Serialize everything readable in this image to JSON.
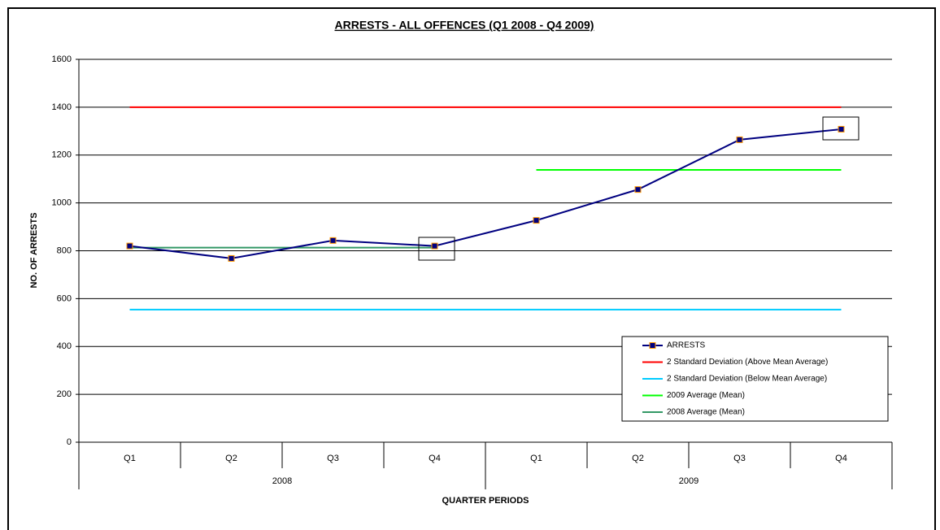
{
  "chart_data": {
    "type": "line",
    "title": "ARRESTS - ALL OFFENCES (Q1 2008 - Q4 2009)",
    "x_label": "QUARTER PERIODS",
    "y_label": "NO. OF ARRESTS",
    "categories": [
      "Q1",
      "Q2",
      "Q3",
      "Q4",
      "Q1",
      "Q2",
      "Q3",
      "Q4"
    ],
    "groups": [
      "2008",
      "2009"
    ],
    "series": [
      {
        "name": "ARRESTS",
        "color": "#000080",
        "marker": "square",
        "values": [
          820,
          768,
          843,
          820,
          927,
          1056,
          1264,
          1308
        ]
      },
      {
        "name": "2 Standard Deviation (Above Mean Average)",
        "color": "#ff0000",
        "values": [
          1400,
          1400,
          1400,
          1400,
          1400,
          1400,
          1400,
          1400
        ]
      },
      {
        "name": "2 Standard Deviation (Below Mean Average)",
        "color": "#00ccff",
        "values": [
          554,
          554,
          554,
          554,
          554,
          554,
          554,
          554
        ]
      },
      {
        "name": "2009 Average (Mean)",
        "color": "#00ff00",
        "values": [
          null,
          null,
          null,
          null,
          1138,
          1138,
          1138,
          1138
        ]
      },
      {
        "name": "2008 Average (Mean)",
        "color": "#339966",
        "values": [
          813,
          813,
          813,
          813,
          null,
          null,
          null,
          null
        ]
      }
    ],
    "ylim": [
      0,
      1600
    ],
    "yticks": [
      0,
      200,
      400,
      600,
      800,
      1000,
      1200,
      1400,
      1600
    ],
    "grid": true,
    "legend": "lower right"
  }
}
